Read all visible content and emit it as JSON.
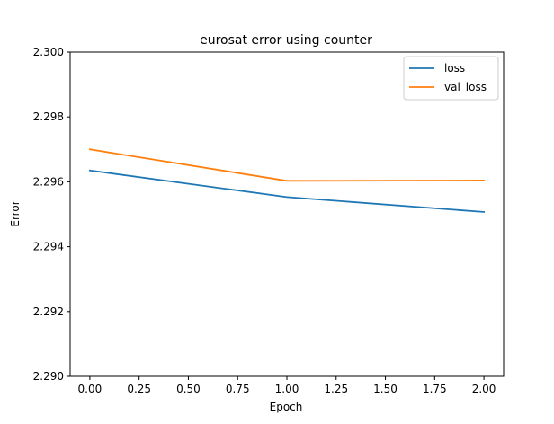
{
  "chart_data": {
    "type": "line",
    "title": "eurosat error using counter",
    "xlabel": "Epoch",
    "ylabel": "Error",
    "x": [
      0,
      1,
      2
    ],
    "xlim": [
      -0.1,
      2.1
    ],
    "ylim": [
      2.29,
      2.3
    ],
    "xticks": [
      0.0,
      0.25,
      0.5,
      0.75,
      1.0,
      1.25,
      1.5,
      1.75,
      2.0
    ],
    "xtick_labels": [
      "0.00",
      "0.25",
      "0.50",
      "0.75",
      "1.00",
      "1.25",
      "1.50",
      "1.75",
      "2.00"
    ],
    "yticks": [
      2.29,
      2.292,
      2.294,
      2.296,
      2.298,
      2.3
    ],
    "ytick_labels": [
      "2.290",
      "2.292",
      "2.294",
      "2.296",
      "2.298",
      "2.300"
    ],
    "grid": false,
    "legend_position": "top-right",
    "series": [
      {
        "name": "loss",
        "color": "#1f77b4",
        "values": [
          2.29635,
          2.29553,
          2.29507
        ]
      },
      {
        "name": "val_loss",
        "color": "#ff7f0e",
        "values": [
          2.297,
          2.29603,
          2.29604
        ]
      }
    ]
  }
}
